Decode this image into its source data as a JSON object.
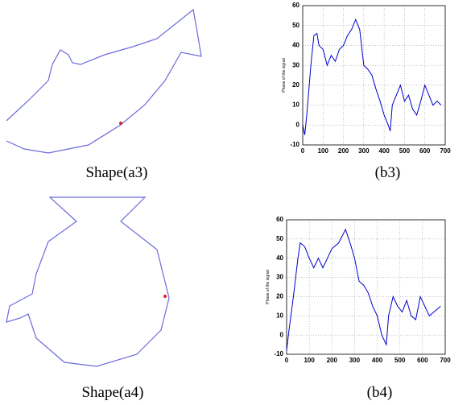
{
  "shape_captions": [
    "Shape(a3)",
    "Shape(a4)"
  ],
  "chart_data": [
    {
      "type": "line",
      "caption": "(b3)",
      "y_label": "Phase of the signal",
      "x": [
        0,
        10,
        20,
        40,
        55,
        70,
        80,
        100,
        120,
        140,
        160,
        180,
        200,
        220,
        240,
        260,
        280,
        300,
        320,
        340,
        360,
        380,
        400,
        420,
        430,
        440,
        460,
        480,
        500,
        520,
        540,
        560,
        580,
        600,
        620,
        640,
        660,
        680
      ],
      "series": [
        {
          "color": "#0000cc",
          "values": [
            0,
            -5,
            5,
            30,
            45,
            46,
            40,
            38,
            30,
            35,
            32,
            38,
            40,
            45,
            48,
            53,
            48,
            30,
            28,
            25,
            18,
            12,
            5,
            0,
            -3,
            10,
            15,
            20,
            12,
            15,
            8,
            5,
            12,
            20,
            15,
            10,
            12,
            10
          ]
        }
      ],
      "xlim": [
        0,
        700
      ],
      "ylim": [
        -10,
        60
      ],
      "xticks": [
        0,
        100,
        200,
        300,
        400,
        500,
        600,
        700
      ],
      "yticks": [
        -10,
        0,
        10,
        20,
        30,
        40,
        50,
        60
      ],
      "grid": true
    },
    {
      "type": "line",
      "caption": "(b4)",
      "y_label": "Phase of the signal",
      "x": [
        0,
        10,
        30,
        50,
        60,
        80,
        100,
        120,
        140,
        160,
        180,
        200,
        230,
        260,
        280,
        300,
        320,
        340,
        360,
        380,
        400,
        420,
        440,
        450,
        470,
        490,
        510,
        530,
        550,
        570,
        590,
        610,
        630,
        650,
        680
      ],
      "series": [
        {
          "color": "#0000cc",
          "values": [
            -8,
            2,
            20,
            40,
            48,
            46,
            40,
            35,
            40,
            35,
            40,
            45,
            48,
            55,
            48,
            40,
            28,
            26,
            22,
            15,
            10,
            0,
            -5,
            10,
            20,
            15,
            12,
            18,
            10,
            8,
            20,
            15,
            10,
            12,
            15
          ]
        }
      ],
      "xlim": [
        0,
        700
      ],
      "ylim": [
        -10,
        60
      ],
      "xticks": [
        0,
        100,
        200,
        300,
        400,
        500,
        600,
        700
      ],
      "yticks": [
        -10,
        0,
        10,
        20,
        30,
        40,
        50,
        60
      ],
      "grid": true
    }
  ]
}
